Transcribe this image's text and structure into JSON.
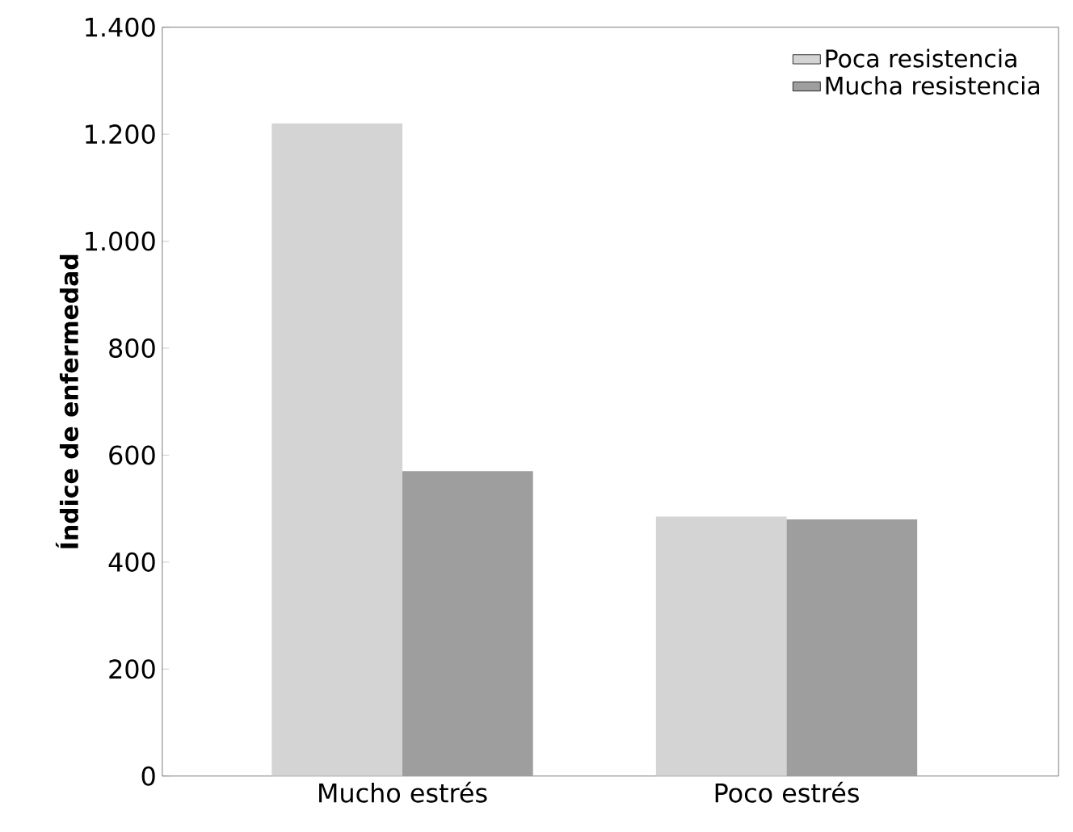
{
  "chart_data": {
    "type": "bar",
    "ylabel": "Índice de enfermedad",
    "categories": [
      "Mucho estrés",
      "Poco estrés"
    ],
    "series": [
      {
        "name": "Poca resistencia",
        "color": "#d4d4d4",
        "values": [
          1220,
          485
        ]
      },
      {
        "name": "Mucha resistencia",
        "color": "#9e9e9e",
        "values": [
          570,
          480
        ]
      }
    ],
    "ylim": [
      0,
      1400
    ],
    "yticks": [
      0,
      200,
      400,
      600,
      800,
      {
        "value": 1000,
        "label": "1.000"
      },
      {
        "value": 1200,
        "label": "1.200"
      },
      {
        "value": 1400,
        "label": "1.400"
      }
    ],
    "legend": "top right",
    "grid": false
  }
}
